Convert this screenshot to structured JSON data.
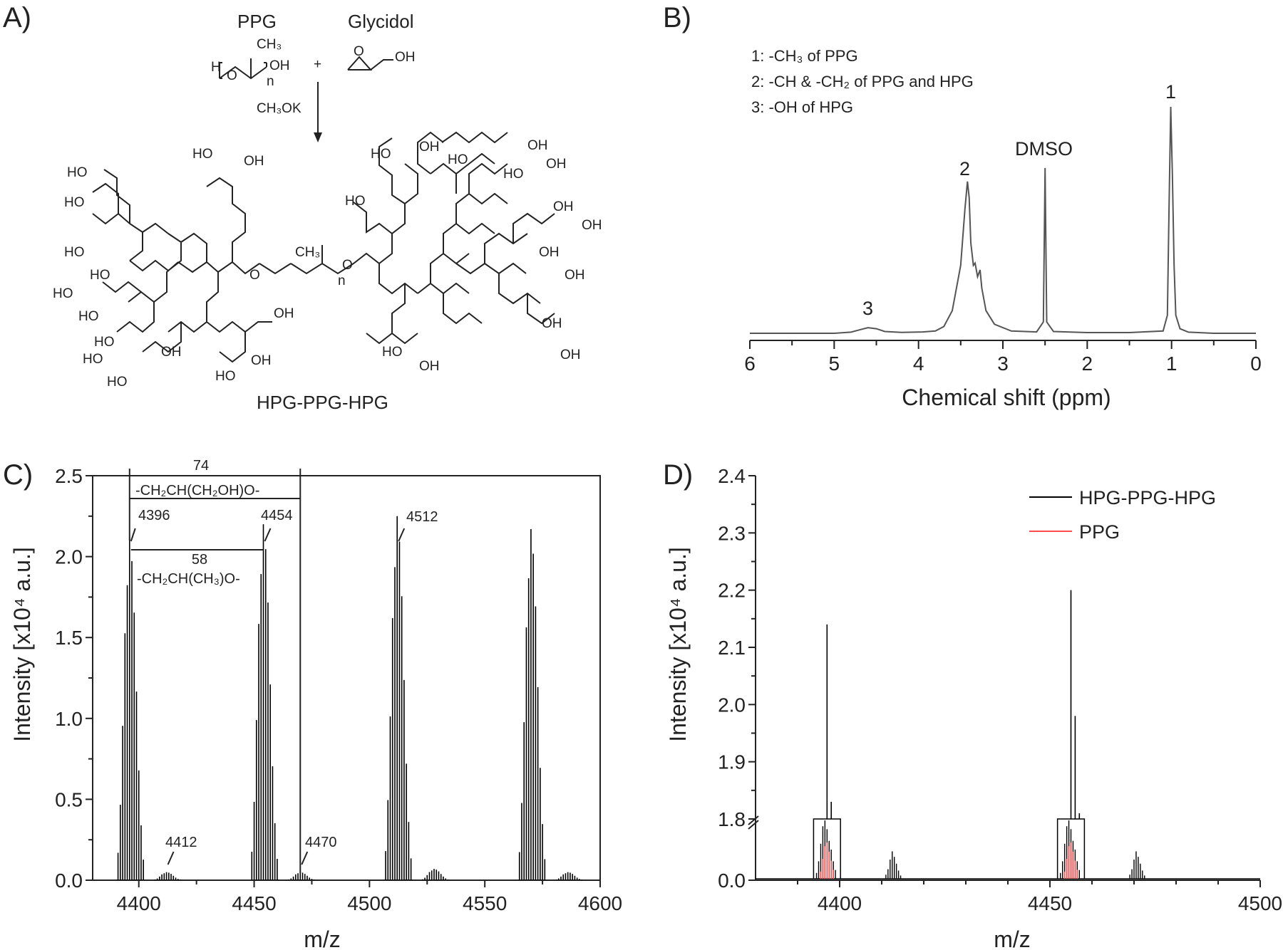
{
  "panels": {
    "a": {
      "letter": "A)",
      "reactant1": "PPG",
      "reactant2": "Glycidol",
      "plus": "+",
      "catalyst": "CH₃OK",
      "product": "HPG-PPG-HPG",
      "atom_labels": {
        "ho": "HO",
        "oh": "OH",
        "o": "O",
        "ch3": "CH₃",
        "n": "n",
        "h": "H"
      }
    },
    "b": {
      "letter": "B)",
      "legend_lines": [
        "1: -CH₃ of PPG",
        "2: -CH & -CH₂ of PPG and HPG",
        "3: -OH of HPG"
      ],
      "peak_labels": [
        "1",
        "2",
        "DMSO",
        "3"
      ]
    },
    "c": {
      "letter": "C)",
      "annotations": {
        "span_74": "74",
        "unit_74": "-CH₂CH(CH₂OH)O-",
        "span_58": "58",
        "unit_58": "-CH₂CH(CH₃)O-",
        "m4396": "4396",
        "m4454": "4454",
        "m4512": "4512",
        "m4412": "4412",
        "m4470": "4470"
      }
    },
    "d": {
      "letter": "D)",
      "break_label": "1.8"
    }
  },
  "chart_data": [
    {
      "type": "line",
      "panel": "B",
      "xlabel": "Chemical shift (ppm)",
      "ylabel": "",
      "xlim": [
        6,
        0
      ],
      "x_reversed": true,
      "xticks": [
        6,
        5,
        4,
        3,
        2,
        1,
        0
      ],
      "series": [
        {
          "color": "#555555",
          "x": [
            6.0,
            5.0,
            4.8,
            4.7,
            4.6,
            4.5,
            4.4,
            4.2,
            3.95,
            3.8,
            3.7,
            3.6,
            3.55,
            3.5,
            3.45,
            3.42,
            3.4,
            3.38,
            3.35,
            3.33,
            3.3,
            3.27,
            3.25,
            3.2,
            3.1,
            2.9,
            2.6,
            2.52,
            2.5,
            2.48,
            2.4,
            2.0,
            1.5,
            1.1,
            1.05,
            1.03,
            1.01,
            0.99,
            0.97,
            0.95,
            0.9,
            0.8,
            0.5,
            0.0
          ],
          "y": [
            0.0,
            0.0,
            0.005,
            0.015,
            0.025,
            0.02,
            0.008,
            0.004,
            0.006,
            0.01,
            0.03,
            0.1,
            0.2,
            0.3,
            0.55,
            0.67,
            0.6,
            0.4,
            0.3,
            0.31,
            0.25,
            0.28,
            0.2,
            0.1,
            0.04,
            0.01,
            0.006,
            0.05,
            0.73,
            0.05,
            0.008,
            0.003,
            0.003,
            0.01,
            0.08,
            0.55,
            1.0,
            0.7,
            0.3,
            0.08,
            0.02,
            0.005,
            0.0,
            0.0
          ]
        }
      ]
    },
    {
      "type": "line",
      "panel": "C",
      "xlabel": "m/z",
      "ylabel": "Intensity [x10⁴ a.u.]",
      "xlim": [
        4380,
        4600
      ],
      "ylim": [
        0,
        2.5
      ],
      "xticks": [
        4400,
        4450,
        4500,
        4550,
        4600
      ],
      "yticks": [
        0.0,
        0.5,
        1.0,
        1.5,
        2.0,
        2.5
      ],
      "series": [
        {
          "name": "HPG-PPG-HPG",
          "color": "#000000",
          "peak_clusters": [
            {
              "center": 4396.5,
              "max": 2.12
            },
            {
              "center": 4412.5,
              "max": 0.05
            },
            {
              "center": 4454.5,
              "max": 2.2
            },
            {
              "center": 4470.5,
              "max": 0.05
            },
            {
              "center": 4512.5,
              "max": 2.25
            },
            {
              "center": 4528.5,
              "max": 0.07
            },
            {
              "center": 4570.5,
              "max": 2.17
            },
            {
              "center": 4586.5,
              "max": 0.05
            }
          ]
        }
      ]
    },
    {
      "type": "line",
      "panel": "D",
      "xlabel": "m/z",
      "ylabel": "Intensity [x10⁴ a.u.]",
      "xlim": [
        4380,
        4500
      ],
      "xticks": [
        4400,
        4450,
        4500
      ],
      "yticks_lower": [
        0.0
      ],
      "yticks_upper": [
        1.8,
        1.9,
        2.0,
        2.1,
        2.2,
        2.3,
        2.4
      ],
      "ylim_upper": [
        1.8,
        2.4
      ],
      "legend_position": "top-right",
      "series": [
        {
          "name": "HPG-PPG-HPG",
          "color": "#000000",
          "peaks": [
            {
              "mz": 4397,
              "value": 2.14
            },
            {
              "mz": 4398,
              "value": 1.83
            },
            {
              "mz": 4455,
              "value": 2.2
            },
            {
              "mz": 4456,
              "value": 1.98
            },
            {
              "mz": 4457,
              "value": 1.81
            }
          ],
          "clusters_below_break": [
            4397,
            4413,
            4455,
            4471
          ]
        },
        {
          "name": "PPG",
          "color": "#ff4d4d",
          "clusters_below_break": [
            4397,
            4455
          ]
        }
      ]
    }
  ]
}
